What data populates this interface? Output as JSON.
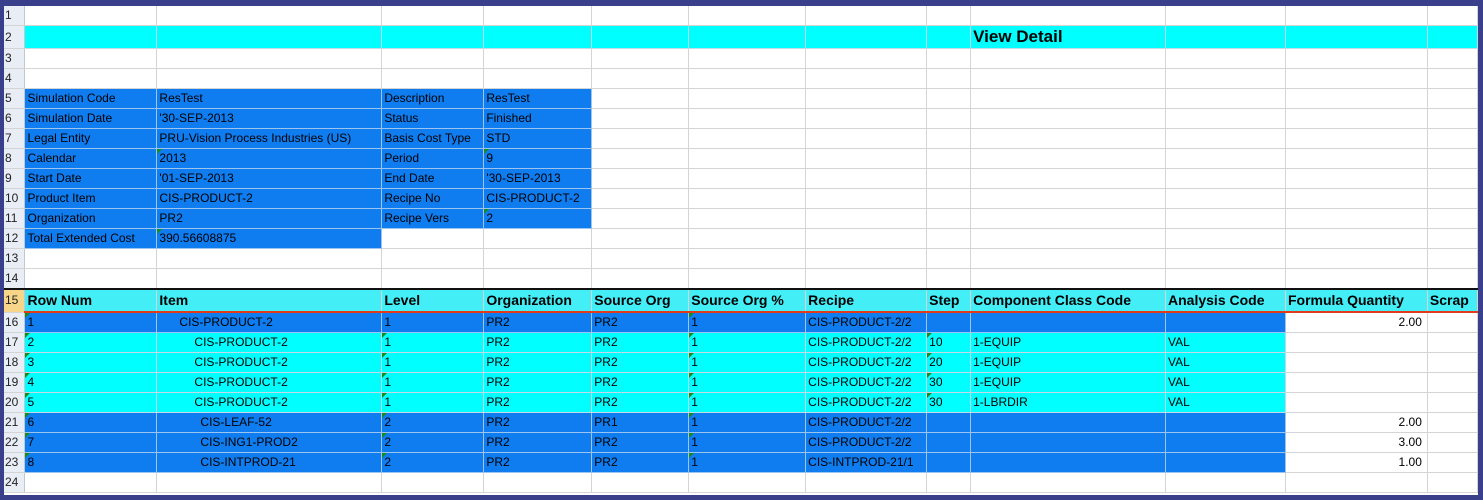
{
  "title": "View Detail",
  "colors": {
    "blue_fill": "#0f7cf0",
    "cyan_fill": "#00ffff",
    "header_fill": "#44eef6",
    "frame": "#3a3f8c"
  },
  "row_numbers": [
    "1",
    "2",
    "3",
    "4",
    "5",
    "6",
    "7",
    "8",
    "9",
    "10",
    "11",
    "12",
    "13",
    "14",
    "15",
    "16",
    "17",
    "18",
    "19",
    "20",
    "21",
    "22",
    "23",
    "24"
  ],
  "info": [
    {
      "label": "Simulation Code",
      "value": "ResTest",
      "label2": "Description",
      "value2": "ResTest"
    },
    {
      "label": "Simulation Date",
      "value": "'30-SEP-2013",
      "label2": "Status",
      "value2": "Finished"
    },
    {
      "label": "Legal Entity",
      "value": "PRU-Vision Process Industries (US)",
      "label2": "Basis Cost Type",
      "value2": "STD"
    },
    {
      "label": "Calendar",
      "value": "2013",
      "label2": "Period",
      "value2": "9"
    },
    {
      "label": "Start Date",
      "value": "'01-SEP-2013",
      "label2": "End Date",
      "value2": "'30-SEP-2013"
    },
    {
      "label": "Product Item",
      "value": "CIS-PRODUCT-2",
      "label2": "Recipe No",
      "value2": "CIS-PRODUCT-2"
    },
    {
      "label": "Organization",
      "value": "PR2",
      "label2": "Recipe Vers",
      "value2": "2"
    },
    {
      "label": "Total Extended Cost",
      "value": "390.56608875"
    }
  ],
  "table": {
    "headers": [
      "Row Num",
      "Item",
      "Level",
      "Organization",
      "Source Org",
      "Source Org %",
      "Recipe",
      "Step",
      "Component Class Code",
      "Analysis Code",
      "Formula Quantity",
      "Scrap"
    ],
    "rows": [
      {
        "band": "blue",
        "cells": [
          "1",
          "CIS-PRODUCT-2",
          "1",
          "PR2",
          "PR2",
          "1",
          "CIS-PRODUCT-2/2",
          "",
          "",
          "",
          "2.00",
          ""
        ]
      },
      {
        "band": "cyan",
        "cells": [
          "2",
          "CIS-PRODUCT-2",
          "1",
          "PR2",
          "PR2",
          "1",
          "CIS-PRODUCT-2/2",
          "10",
          "1-EQUIP",
          "VAL",
          "",
          ""
        ]
      },
      {
        "band": "cyan",
        "cells": [
          "3",
          "CIS-PRODUCT-2",
          "1",
          "PR2",
          "PR2",
          "1",
          "CIS-PRODUCT-2/2",
          "20",
          "1-EQUIP",
          "VAL",
          "",
          ""
        ]
      },
      {
        "band": "cyan",
        "cells": [
          "4",
          "CIS-PRODUCT-2",
          "1",
          "PR2",
          "PR2",
          "1",
          "CIS-PRODUCT-2/2",
          "30",
          "1-EQUIP",
          "VAL",
          "",
          ""
        ]
      },
      {
        "band": "cyan",
        "cells": [
          "5",
          "CIS-PRODUCT-2",
          "1",
          "PR2",
          "PR2",
          "1",
          "CIS-PRODUCT-2/2",
          "30",
          "1-LBRDIR",
          "VAL",
          "",
          ""
        ]
      },
      {
        "band": "blue",
        "cells": [
          "6",
          "CIS-LEAF-52",
          "2",
          "PR2",
          "PR1",
          "1",
          "CIS-PRODUCT-2/2",
          "",
          "",
          "",
          "2.00",
          ""
        ]
      },
      {
        "band": "blue",
        "cells": [
          "7",
          "CIS-ING1-PROD2",
          "2",
          "PR2",
          "PR2",
          "1",
          "CIS-PRODUCT-2/2",
          "",
          "",
          "",
          "3.00",
          ""
        ]
      },
      {
        "band": "blue",
        "cells": [
          "8",
          "CIS-INTPROD-21",
          "2",
          "PR2",
          "PR2",
          "1",
          "CIS-INTPROD-21/1",
          "",
          "",
          "",
          "1.00",
          ""
        ]
      }
    ]
  }
}
